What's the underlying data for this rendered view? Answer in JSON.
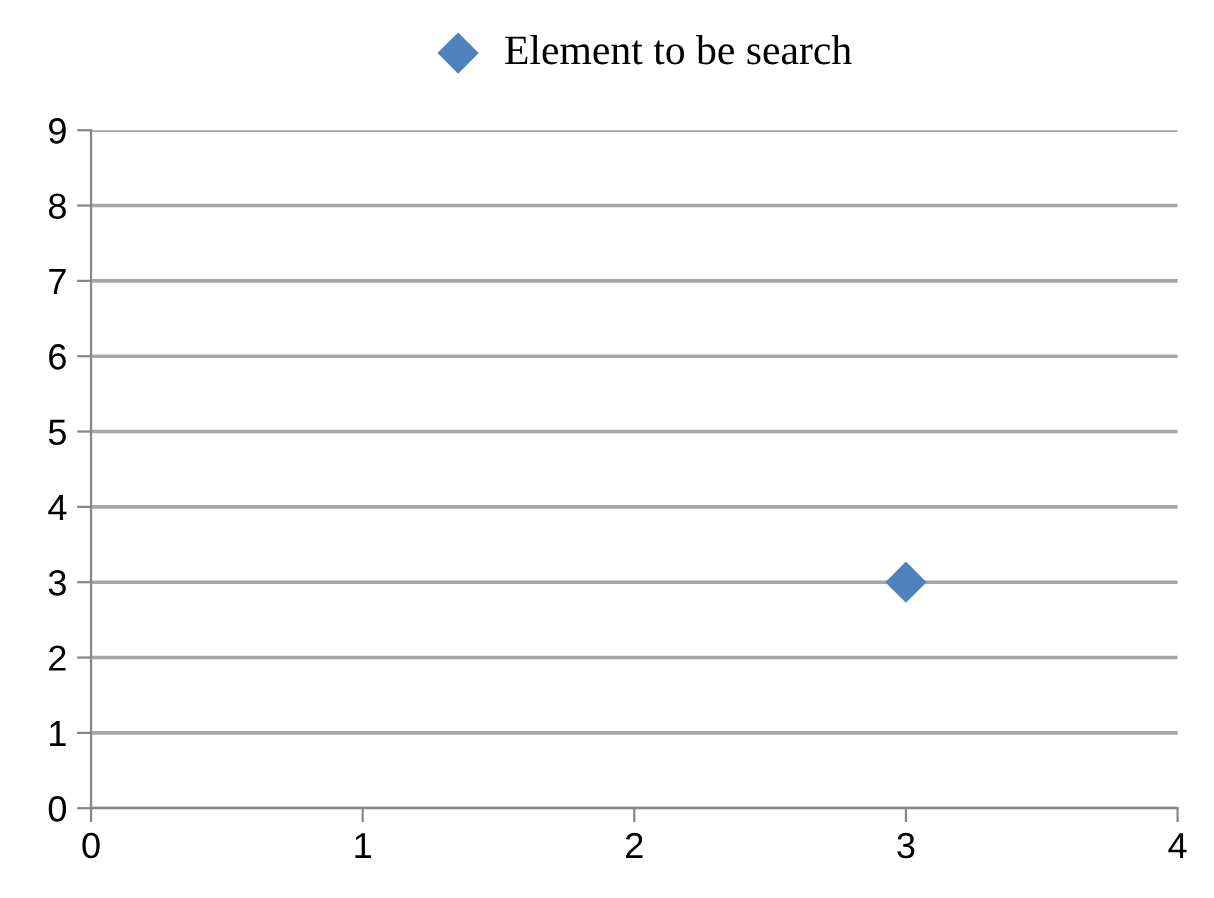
{
  "chart_data": {
    "type": "scatter",
    "series": [
      {
        "name": "Element to be search",
        "color": "#4f81bd",
        "x": [
          3
        ],
        "values": [
          3
        ]
      }
    ],
    "xlim": [
      0,
      4
    ],
    "xticks": [
      0,
      1,
      2,
      3,
      4
    ],
    "ylim": [
      0,
      9
    ],
    "yticks": [
      0,
      1,
      2,
      3,
      4,
      5,
      6,
      7,
      8,
      9
    ],
    "grid": "y",
    "legend": "top",
    "marker": "diamond"
  }
}
